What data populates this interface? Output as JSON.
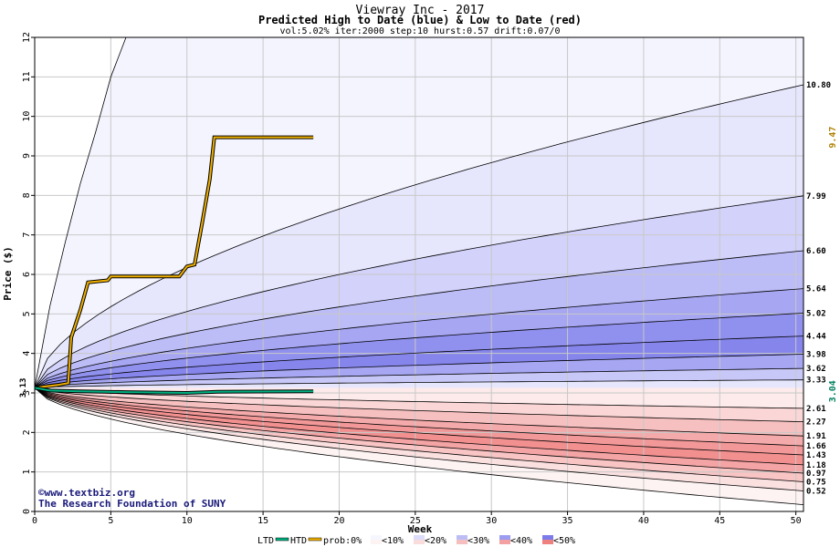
{
  "chart_data": {
    "type": "area",
    "title": "Viewray Inc - 2017",
    "subtitle": "Predicted High to Date (blue) &  Low to Date (red)",
    "params": "vol:5.02% iter:2000 step:10 hurst:0.57 drift:0.07/0",
    "xlabel": "Week",
    "ylabel": "Price ($)",
    "xlim": [
      0,
      50.5
    ],
    "ylim": [
      0,
      12
    ],
    "x_ticks": [
      0,
      5,
      10,
      15,
      20,
      25,
      30,
      35,
      40,
      45,
      50
    ],
    "y_ticks": [
      0,
      1,
      2,
      3,
      4,
      5,
      6,
      7,
      8,
      9,
      10,
      11,
      12
    ],
    "grid": true,
    "start_price": 3.13,
    "start_label": "3.13",
    "high_percentile_bands": [
      {
        "end_value": 10.8,
        "label": "10.80"
      },
      {
        "end_value": 7.99,
        "label": "7.99"
      },
      {
        "end_value": 6.6,
        "label": "6.60"
      },
      {
        "end_value": 5.64,
        "label": "5.64"
      },
      {
        "end_value": 5.02,
        "label": "5.02"
      },
      {
        "end_value": 4.44,
        "label": "4.44"
      },
      {
        "end_value": 3.98,
        "label": "3.98"
      },
      {
        "end_value": 3.62,
        "label": "3.62"
      },
      {
        "end_value": 3.33,
        "label": "3.33"
      }
    ],
    "low_percentile_bands": [
      {
        "end_value": 2.61,
        "label": "2.61"
      },
      {
        "end_value": 2.27,
        "label": "2.27"
      },
      {
        "end_value": 1.91,
        "label": "1.91"
      },
      {
        "end_value": 1.66,
        "label": "1.66"
      },
      {
        "end_value": 1.43,
        "label": "1.43"
      },
      {
        "end_value": 1.18,
        "label": "1.18"
      },
      {
        "end_value": 0.97,
        "label": "0.97"
      },
      {
        "end_value": 0.75,
        "label": "0.75"
      },
      {
        "end_value": 0.52,
        "label": "0.52"
      }
    ],
    "extreme_high_curve": {
      "points": [
        [
          0,
          3.13
        ],
        [
          1,
          5.2
        ],
        [
          2,
          6.8
        ],
        [
          3,
          8.3
        ],
        [
          4,
          9.6
        ],
        [
          5,
          11.0
        ],
        [
          6,
          12.2
        ]
      ]
    },
    "extreme_low_curve_end": 0.17,
    "series": [
      {
        "name": "HTD",
        "color": "#f0b000",
        "points": [
          [
            0,
            3.13
          ],
          [
            1.5,
            3.2
          ],
          [
            2.2,
            3.25
          ],
          [
            2.4,
            4.4
          ],
          [
            3,
            5.1
          ],
          [
            3.5,
            5.8
          ],
          [
            4.8,
            5.85
          ],
          [
            5,
            5.95
          ],
          [
            7,
            5.95
          ],
          [
            9.5,
            5.95
          ],
          [
            10,
            6.2
          ],
          [
            10.5,
            6.25
          ],
          [
            11,
            7.3
          ],
          [
            11.5,
            8.4
          ],
          [
            11.8,
            9.47
          ],
          [
            18.3,
            9.47
          ]
        ],
        "end_label": "9.47"
      },
      {
        "name": "LTD",
        "color": "#00b080",
        "points": [
          [
            0,
            3.13
          ],
          [
            1,
            3.06
          ],
          [
            3,
            3.04
          ],
          [
            6,
            3.02
          ],
          [
            10,
            3.0
          ],
          [
            12,
            3.03
          ],
          [
            18.3,
            3.04
          ]
        ],
        "end_label": "3.04"
      }
    ]
  },
  "credits": {
    "line1": "©www.textbiz.org",
    "line2": "The Research Foundation of SUNY"
  },
  "legend": {
    "ltd": "LTD",
    "htd": "HTD",
    "prob": "prob:0%",
    "items": [
      "<10%",
      "<20%",
      "<30%",
      "<40%",
      "<50%"
    ],
    "blue_colors": [
      "#f6f6ff",
      "#dcdcfb",
      "#bdbdf6",
      "#9c9cf0",
      "#7b7bea"
    ],
    "red_colors": [
      "#fdf3f3",
      "#fadcdc",
      "#f6bfbf",
      "#f2a0a0",
      "#ee8080"
    ]
  },
  "colors": {
    "ltd": "#00b080",
    "htd": "#f0b000",
    "htd_label": "#b08000",
    "ltd_label": "#008060"
  }
}
